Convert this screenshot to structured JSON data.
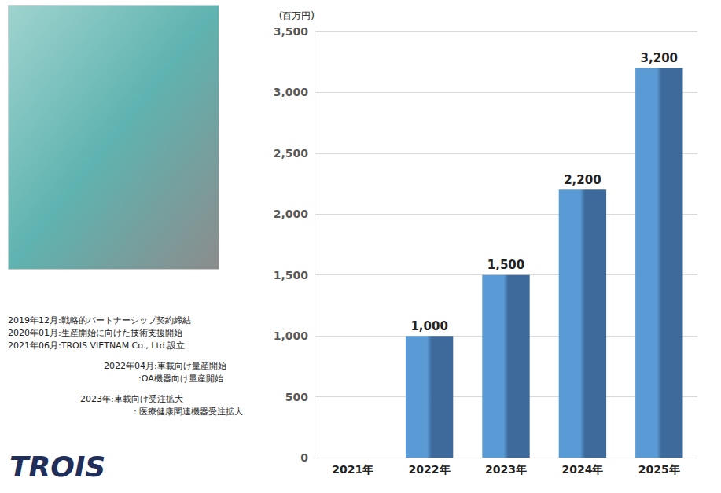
{
  "chart_data": {
    "type": "bar",
    "y_label": "(百万円)",
    "categories": [
      "2021年",
      "2022年",
      "2023年",
      "2024年",
      "2025年"
    ],
    "values": [
      0,
      1000,
      1500,
      2200,
      3200
    ],
    "value_labels": [
      null,
      "1,000",
      "1,500",
      "2,200",
      "3,200"
    ],
    "data_labels": true,
    "color": "#5b9bd5",
    "ylim": [
      0,
      3500
    ],
    "yticks": [
      0,
      500,
      {
        "value": 1000,
        "label": "1,000"
      },
      {
        "value": 1500,
        "label": "1,500"
      },
      {
        "value": 2000,
        "label": "2,000"
      },
      {
        "value": 2500,
        "label": "2,500"
      },
      {
        "value": 3000,
        "label": "3,000"
      },
      {
        "value": 3500,
        "label": "3,500"
      }
    ],
    "grid": true,
    "annotations": [
      "2019年12月:戦略的パートナーシップ契約締結",
      "2020年01月:生産開始に向けた技術支援開始",
      "2021年06月:TROIS VIETNAM Co., Ltd.設立",
      "2022年04月:車載向け量産開始",
      ":OA機器向け量産開始",
      "2023年:車載向け受注拡大",
      ": 医療健康関連機器受注拡大"
    ],
    "logo": "TROIS"
  }
}
